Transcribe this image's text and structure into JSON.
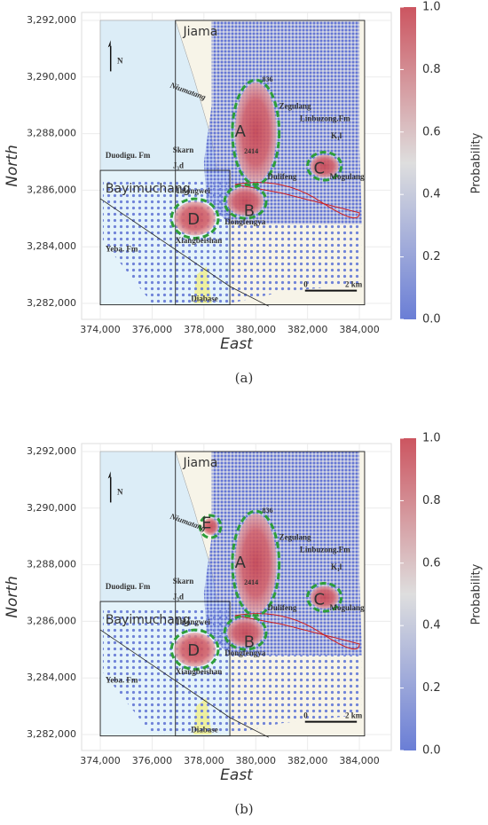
{
  "chart_data": [
    {
      "type": "map",
      "xlabel": "East",
      "ylabel": "North",
      "xlim": [
        373280,
        385230
      ],
      "ylim": [
        3281436,
        3292282
      ],
      "xticks": [
        {
          "value": 374000,
          "label": "374,000"
        },
        {
          "value": 376000,
          "label": "376,000"
        },
        {
          "value": 378000,
          "label": "378,000"
        },
        {
          "value": 380000,
          "label": "380,000"
        },
        {
          "value": 382000,
          "label": "382,000"
        },
        {
          "value": 384000,
          "label": "384,000"
        }
      ],
      "yticks": [
        {
          "value": 3282000,
          "label": "3,282,000"
        },
        {
          "value": 3284000,
          "label": "3,284,000"
        },
        {
          "value": 3286000,
          "label": "3,286,000"
        },
        {
          "value": 3288000,
          "label": "3,288,000"
        },
        {
          "value": 3290000,
          "label": "3,290,000"
        },
        {
          "value": 3292000,
          "label": "3,292,000"
        }
      ],
      "grid": true,
      "colorbar": {
        "label": "Probability",
        "lim": [
          0,
          1
        ],
        "colors": [
          "#6a7ed6",
          "#dedede",
          "#cc5560"
        ],
        "ticks": [
          {
            "value": 0,
            "label": "0.0"
          },
          {
            "value": 0.2,
            "label": "0.2"
          },
          {
            "value": 0.4,
            "label": "0.4"
          },
          {
            "value": 0.6,
            "label": "0.6"
          },
          {
            "value": 0.8,
            "label": "0.8"
          },
          {
            "value": 1,
            "label": "1.0"
          }
        ]
      },
      "annotations": [
        "Jiama",
        "Bayimuchang",
        "Niumatang",
        "Zegulang",
        "Linbuzong.Fm",
        "K₁l",
        "Skarn",
        "J₃d",
        "Duodigu. Fm",
        "Talongwei",
        "Dulifeng",
        "Dongfengya",
        "Mogulang",
        "Xiangbeishan",
        "Yeba. Fm",
        "Diabase",
        "836",
        "2414",
        "N",
        "0",
        "2 km",
        "A",
        "B",
        "C",
        "D"
      ],
      "caption": "(a)"
    },
    {
      "type": "map",
      "xlabel": "East",
      "ylabel": "North",
      "xlim": [
        373280,
        385230
      ],
      "ylim": [
        3281436,
        3292282
      ],
      "xticks": [
        {
          "value": 374000,
          "label": "374,000"
        },
        {
          "value": 376000,
          "label": "376,000"
        },
        {
          "value": 378000,
          "label": "378,000"
        },
        {
          "value": 380000,
          "label": "380,000"
        },
        {
          "value": 382000,
          "label": "382,000"
        },
        {
          "value": 384000,
          "label": "384,000"
        }
      ],
      "yticks": [
        {
          "value": 3282000,
          "label": "3,282,000"
        },
        {
          "value": 3284000,
          "label": "3,284,000"
        },
        {
          "value": 3286000,
          "label": "3,286,000"
        },
        {
          "value": 3288000,
          "label": "3,288,000"
        },
        {
          "value": 3290000,
          "label": "3,290,000"
        },
        {
          "value": 3292000,
          "label": "3,292,000"
        }
      ],
      "grid": true,
      "colorbar": {
        "label": "Probability",
        "lim": [
          0,
          1
        ],
        "colors": [
          "#6a7ed6",
          "#dedede",
          "#cc5560"
        ],
        "ticks": [
          {
            "value": 0,
            "label": "0.0"
          },
          {
            "value": 0.2,
            "label": "0.2"
          },
          {
            "value": 0.4,
            "label": "0.4"
          },
          {
            "value": 0.6,
            "label": "0.6"
          },
          {
            "value": 0.8,
            "label": "0.8"
          },
          {
            "value": 1,
            "label": "1.0"
          }
        ]
      },
      "annotations": [
        "Jiama",
        "Bayimuchang",
        "Niumatang",
        "Zegulang",
        "Linbuzong.Fm",
        "K₁l",
        "Skarn",
        "J₃d",
        "Duodigu. Fm",
        "Talongwei",
        "Dulifeng",
        "Dongfengya",
        "Mogulang",
        "Xiangbeishan",
        "Yeba. Fm",
        "Diabase",
        "836",
        "2414",
        "N",
        "0",
        "2 km",
        "A",
        "B",
        "C",
        "D",
        "E"
      ],
      "caption": "(b)"
    }
  ]
}
